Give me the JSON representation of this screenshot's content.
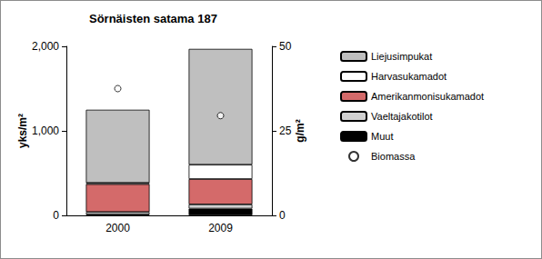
{
  "chart_data": {
    "type": "bar",
    "title": "Sörnäisten satama 187",
    "categories": [
      "2000",
      "2009"
    ],
    "stacked": true,
    "ylabel": "yks/m²",
    "y2label": "g/m²",
    "ylim": [
      0,
      2000
    ],
    "yticks": [
      0,
      1000,
      2000
    ],
    "y2lim": [
      0,
      50
    ],
    "y2ticks": [
      0,
      25,
      50
    ],
    "grid": false,
    "legend": "right",
    "series": [
      {
        "name": "Muut",
        "color": "#000000",
        "values": [
          10,
          80
        ]
      },
      {
        "name": "Vaeltajakotilot",
        "color": "#d0d0d0",
        "values": [
          30,
          50
        ]
      },
      {
        "name": "Amerikanmonisukamadot",
        "color": "#d46a6a",
        "values": [
          330,
          300
        ]
      },
      {
        "name": "Harvasukamadot",
        "color": "#ffffff",
        "values": [
          15,
          170
        ]
      },
      {
        "name": "Liejusimpukat",
        "color": "#bfbfbf",
        "values": [
          865,
          1370
        ]
      },
      {
        "name": "Biomassa",
        "type": "scatter",
        "axis": "y2",
        "color": "#000000",
        "marker": "circle",
        "values": [
          37.5,
          29.5
        ]
      }
    ]
  }
}
